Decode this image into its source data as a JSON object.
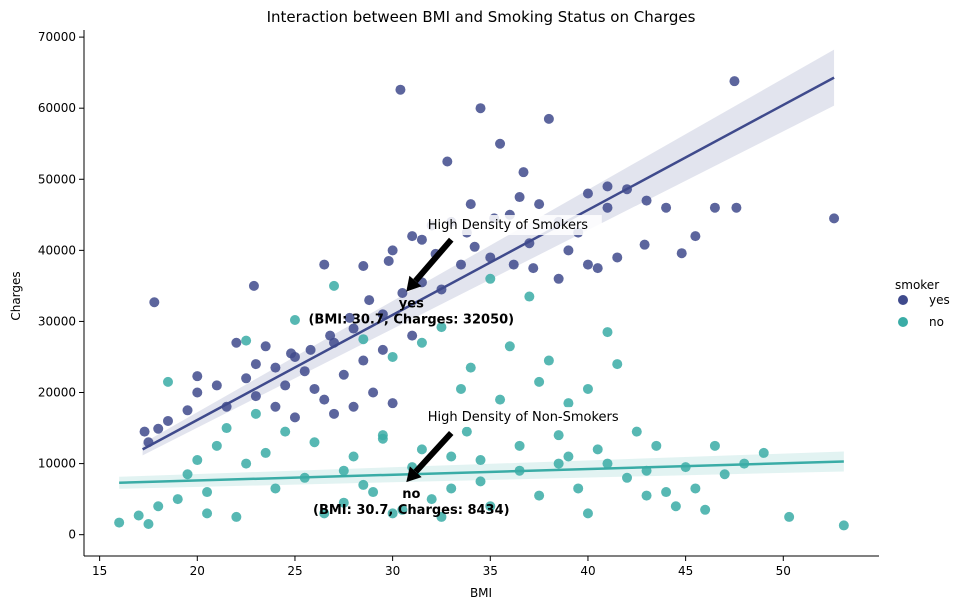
{
  "chart_data": {
    "type": "scatter",
    "title": "Interaction between BMI and Smoking Status on Charges",
    "xlabel": "BMI",
    "ylabel": "Charges",
    "xlim": [
      14.2,
      54.9
    ],
    "ylim": [
      -3000,
      71000
    ],
    "xticks": [
      15,
      20,
      25,
      30,
      35,
      40,
      45,
      50
    ],
    "yticks": [
      0,
      10000,
      20000,
      30000,
      40000,
      50000,
      60000,
      70000
    ],
    "grid": false,
    "legend": {
      "title": "smoker",
      "placement": "right",
      "entries": [
        {
          "label": "yes",
          "color": "#3f4a8c"
        },
        {
          "label": "no",
          "color": "#3aaca6"
        }
      ]
    },
    "series": [
      {
        "name": "yes",
        "color": "#3f4a8c",
        "regression": {
          "x": [
            17.2,
            52.6
          ],
          "y": [
            12000,
            64300
          ]
        },
        "points_sample": [
          [
            17.8,
            32700
          ],
          [
            22.9,
            35000
          ],
          [
            30.4,
            62600
          ],
          [
            34.5,
            60000
          ],
          [
            35.5,
            55000
          ],
          [
            38.0,
            58500
          ],
          [
            47.5,
            63800
          ],
          [
            52.6,
            44500
          ],
          [
            32.8,
            52500
          ],
          [
            36.7,
            51000
          ],
          [
            40.0,
            48000
          ],
          [
            41.0,
            49000
          ],
          [
            44.0,
            46000
          ],
          [
            46.5,
            46000
          ],
          [
            47.6,
            46000
          ],
          [
            45.5,
            42000
          ],
          [
            44.8,
            39600
          ],
          [
            42.9,
            40800
          ],
          [
            40.0,
            38000
          ],
          [
            38.5,
            36000
          ],
          [
            26.5,
            38000
          ],
          [
            28.5,
            37800
          ],
          [
            31.0,
            42000
          ],
          [
            33.0,
            44000
          ],
          [
            34.0,
            46500
          ],
          [
            36.0,
            45000
          ],
          [
            37.0,
            41000
          ],
          [
            35.0,
            39000
          ],
          [
            33.5,
            38000
          ],
          [
            31.5,
            35500
          ],
          [
            30.5,
            34000
          ],
          [
            32.5,
            34500
          ],
          [
            29.5,
            31000
          ],
          [
            28.0,
            29000
          ],
          [
            27.0,
            27000
          ],
          [
            25.0,
            25000
          ],
          [
            24.0,
            23500
          ],
          [
            22.5,
            22000
          ],
          [
            21.0,
            21000
          ],
          [
            20.0,
            20000
          ],
          [
            19.5,
            17500
          ],
          [
            18.5,
            16000
          ],
          [
            17.3,
            14500
          ],
          [
            17.5,
            13000
          ],
          [
            18.0,
            14900
          ],
          [
            20.0,
            22300
          ],
          [
            21.5,
            18000
          ],
          [
            23.0,
            19500
          ],
          [
            24.5,
            21000
          ],
          [
            25.5,
            23000
          ],
          [
            26.0,
            20500
          ],
          [
            27.5,
            22500
          ],
          [
            28.5,
            24500
          ],
          [
            29.0,
            20000
          ],
          [
            30.0,
            18500
          ],
          [
            27.0,
            17000
          ],
          [
            25.0,
            16500
          ],
          [
            23.5,
            26500
          ],
          [
            22.0,
            27000
          ],
          [
            23.0,
            24000
          ],
          [
            24.0,
            18000
          ],
          [
            26.5,
            19000
          ],
          [
            28.0,
            18000
          ],
          [
            29.5,
            26000
          ],
          [
            31.0,
            28000
          ],
          [
            30.0,
            40000
          ],
          [
            31.5,
            41500
          ],
          [
            32.0,
            43500
          ],
          [
            33.8,
            42500
          ],
          [
            35.2,
            44500
          ],
          [
            36.5,
            47500
          ],
          [
            37.5,
            46500
          ],
          [
            38.5,
            44000
          ],
          [
            39.5,
            42500
          ],
          [
            41.0,
            46000
          ],
          [
            42.0,
            48600
          ],
          [
            43.0,
            47000
          ],
          [
            39.0,
            40000
          ],
          [
            41.5,
            39000
          ],
          [
            40.5,
            37500
          ],
          [
            36.2,
            38000
          ],
          [
            37.2,
            37500
          ],
          [
            34.2,
            40500
          ],
          [
            32.2,
            39500
          ],
          [
            29.8,
            38500
          ],
          [
            28.8,
            33000
          ],
          [
            27.8,
            30500
          ],
          [
            26.8,
            28000
          ],
          [
            25.8,
            26000
          ],
          [
            24.8,
            25500
          ]
        ]
      },
      {
        "name": "no",
        "color": "#3aaca6",
        "regression": {
          "x": [
            16.0,
            53.1
          ],
          "y": [
            7300,
            10300
          ]
        },
        "points_sample": [
          [
            16.0,
            1700
          ],
          [
            17.0,
            2700
          ],
          [
            17.5,
            1500
          ],
          [
            18.0,
            4000
          ],
          [
            18.5,
            21500
          ],
          [
            19.0,
            5000
          ],
          [
            20.0,
            10500
          ],
          [
            20.5,
            3000
          ],
          [
            21.0,
            12500
          ],
          [
            22.0,
            2500
          ],
          [
            22.5,
            27300
          ],
          [
            23.0,
            17000
          ],
          [
            24.0,
            6500
          ],
          [
            25.0,
            30200
          ],
          [
            25.5,
            8000
          ],
          [
            26.0,
            13000
          ],
          [
            27.0,
            35000
          ],
          [
            27.5,
            4500
          ],
          [
            28.0,
            11000
          ],
          [
            28.5,
            27500
          ],
          [
            29.0,
            6000
          ],
          [
            29.5,
            13500
          ],
          [
            30.0,
            25000
          ],
          [
            30.5,
            3500
          ],
          [
            31.0,
            9500
          ],
          [
            31.5,
            27000
          ],
          [
            32.0,
            5000
          ],
          [
            32.5,
            29200
          ],
          [
            33.0,
            11000
          ],
          [
            33.5,
            20500
          ],
          [
            34.0,
            23500
          ],
          [
            34.5,
            7500
          ],
          [
            35.0,
            36000
          ],
          [
            35.5,
            19000
          ],
          [
            36.0,
            26500
          ],
          [
            36.5,
            12500
          ],
          [
            37.0,
            33500
          ],
          [
            37.5,
            21500
          ],
          [
            38.0,
            24500
          ],
          [
            38.5,
            10000
          ],
          [
            39.0,
            18500
          ],
          [
            39.5,
            6500
          ],
          [
            40.0,
            20500
          ],
          [
            40.5,
            12000
          ],
          [
            41.0,
            28500
          ],
          [
            41.5,
            24000
          ],
          [
            42.0,
            8000
          ],
          [
            42.5,
            14500
          ],
          [
            43.0,
            5500
          ],
          [
            43.5,
            12500
          ],
          [
            44.0,
            6000
          ],
          [
            44.5,
            4000
          ],
          [
            45.0,
            9500
          ],
          [
            45.5,
            6500
          ],
          [
            46.0,
            3500
          ],
          [
            46.5,
            12500
          ],
          [
            47.0,
            8500
          ],
          [
            48.0,
            10000
          ],
          [
            49.0,
            11500
          ],
          [
            50.3,
            2500
          ],
          [
            53.1,
            1300
          ],
          [
            38.5,
            14000
          ],
          [
            33.8,
            14500
          ],
          [
            29.5,
            14000
          ],
          [
            24.5,
            14500
          ],
          [
            26.5,
            3000
          ],
          [
            30.0,
            3000
          ],
          [
            32.5,
            2500
          ],
          [
            35.0,
            4000
          ],
          [
            37.5,
            5500
          ],
          [
            40.0,
            3000
          ],
          [
            22.5,
            10000
          ],
          [
            19.5,
            8500
          ],
          [
            21.5,
            15000
          ],
          [
            23.5,
            11500
          ],
          [
            27.5,
            9000
          ],
          [
            31.5,
            12000
          ],
          [
            34.5,
            10500
          ],
          [
            36.5,
            9000
          ],
          [
            39.0,
            11000
          ],
          [
            41.0,
            10000
          ],
          [
            43.0,
            9000
          ],
          [
            20.5,
            6000
          ],
          [
            28.5,
            7000
          ],
          [
            33.0,
            6500
          ]
        ]
      }
    ],
    "annotations": [
      {
        "text": "High Density of Smokers",
        "label_line1": "yes",
        "label_line2": "(BMI: 30.7, Charges: 32050)",
        "arrow_from": [
          33,
          41500
        ],
        "arrow_to": [
          30.7,
          34200
        ],
        "label_at": [
          31.8,
          43000
        ]
      },
      {
        "text": "High Density of Non-Smokers",
        "label_line1": "no",
        "label_line2": "(BMI: 30.7, Charges: 8434)",
        "arrow_from": [
          33,
          14300
        ],
        "arrow_to": [
          30.7,
          7400
        ],
        "label_at": [
          31.8,
          16000
        ]
      }
    ]
  }
}
